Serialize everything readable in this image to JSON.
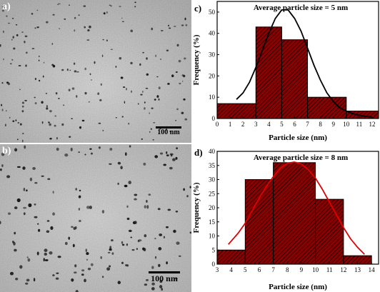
{
  "images": [
    {
      "letter": "a)",
      "scale_bar": "100 nm"
    },
    {
      "letter": "b)",
      "scale_bar": "100 nm"
    }
  ],
  "chart_data": [
    {
      "type": "bar",
      "panel": "c)",
      "title": "Average particle size = 5 nm",
      "xlabel": "Particle size (nm)",
      "ylabel": "Frequency (%)",
      "xlim": [
        0,
        12.5
      ],
      "ylim": [
        0,
        55
      ],
      "xticks": [
        0,
        1,
        2,
        3,
        4,
        5,
        6,
        7,
        8,
        9,
        10,
        11,
        12
      ],
      "yticks": [
        0,
        10,
        20,
        30,
        40,
        50
      ],
      "bins": [
        [
          0,
          3
        ],
        [
          3,
          5
        ],
        [
          5,
          7
        ],
        [
          7,
          10
        ],
        [
          10,
          12.5
        ]
      ],
      "values": [
        7,
        43,
        37,
        10,
        3.5
      ],
      "fit_curve": {
        "x": [
          1.5,
          2,
          2.5,
          3,
          3.5,
          4,
          4.5,
          5,
          5.5,
          6,
          6.5,
          7,
          7.5,
          8,
          8.5,
          9,
          9.5,
          10,
          10.5,
          11,
          11.5,
          12
        ],
        "y": [
          9,
          12,
          17,
          24,
          32,
          40,
          47,
          51,
          51,
          47,
          41,
          33,
          25,
          18,
          12,
          8,
          5,
          3.5,
          2.3,
          1.5,
          1,
          0.7
        ]
      },
      "bar_color": "#8b0000",
      "curve_color": "#000000"
    },
    {
      "type": "bar",
      "panel": "d)",
      "title": "Average particle size = 8 nm",
      "xlabel": "Particle size (nm)",
      "ylabel": "Frequency (%)",
      "xlim": [
        3,
        14.5
      ],
      "ylim": [
        0,
        40
      ],
      "xticks": [
        3,
        4,
        5,
        6,
        7,
        8,
        9,
        10,
        11,
        12,
        13,
        14
      ],
      "yticks": [
        0,
        5,
        10,
        15,
        20,
        25,
        30,
        35,
        40
      ],
      "bins": [
        [
          3,
          5
        ],
        [
          5,
          7
        ],
        [
          7,
          10
        ],
        [
          10,
          12
        ],
        [
          12,
          14
        ]
      ],
      "values": [
        5,
        30,
        36,
        23,
        3
      ],
      "fit_curve": {
        "x": [
          3.8,
          4.5,
          5,
          5.5,
          6,
          6.5,
          7,
          7.5,
          8,
          8.5,
          9,
          9.5,
          10,
          10.5,
          11,
          11.5,
          12,
          12.5,
          13,
          13.5
        ],
        "y": [
          7,
          11,
          14.5,
          19,
          23.5,
          27.5,
          31,
          34,
          35.8,
          36.2,
          35.5,
          33.5,
          30.5,
          26.5,
          22,
          17.5,
          13,
          9,
          6,
          3.5
        ]
      },
      "bar_color": "#8b0000",
      "curve_color": "#e00000"
    }
  ]
}
